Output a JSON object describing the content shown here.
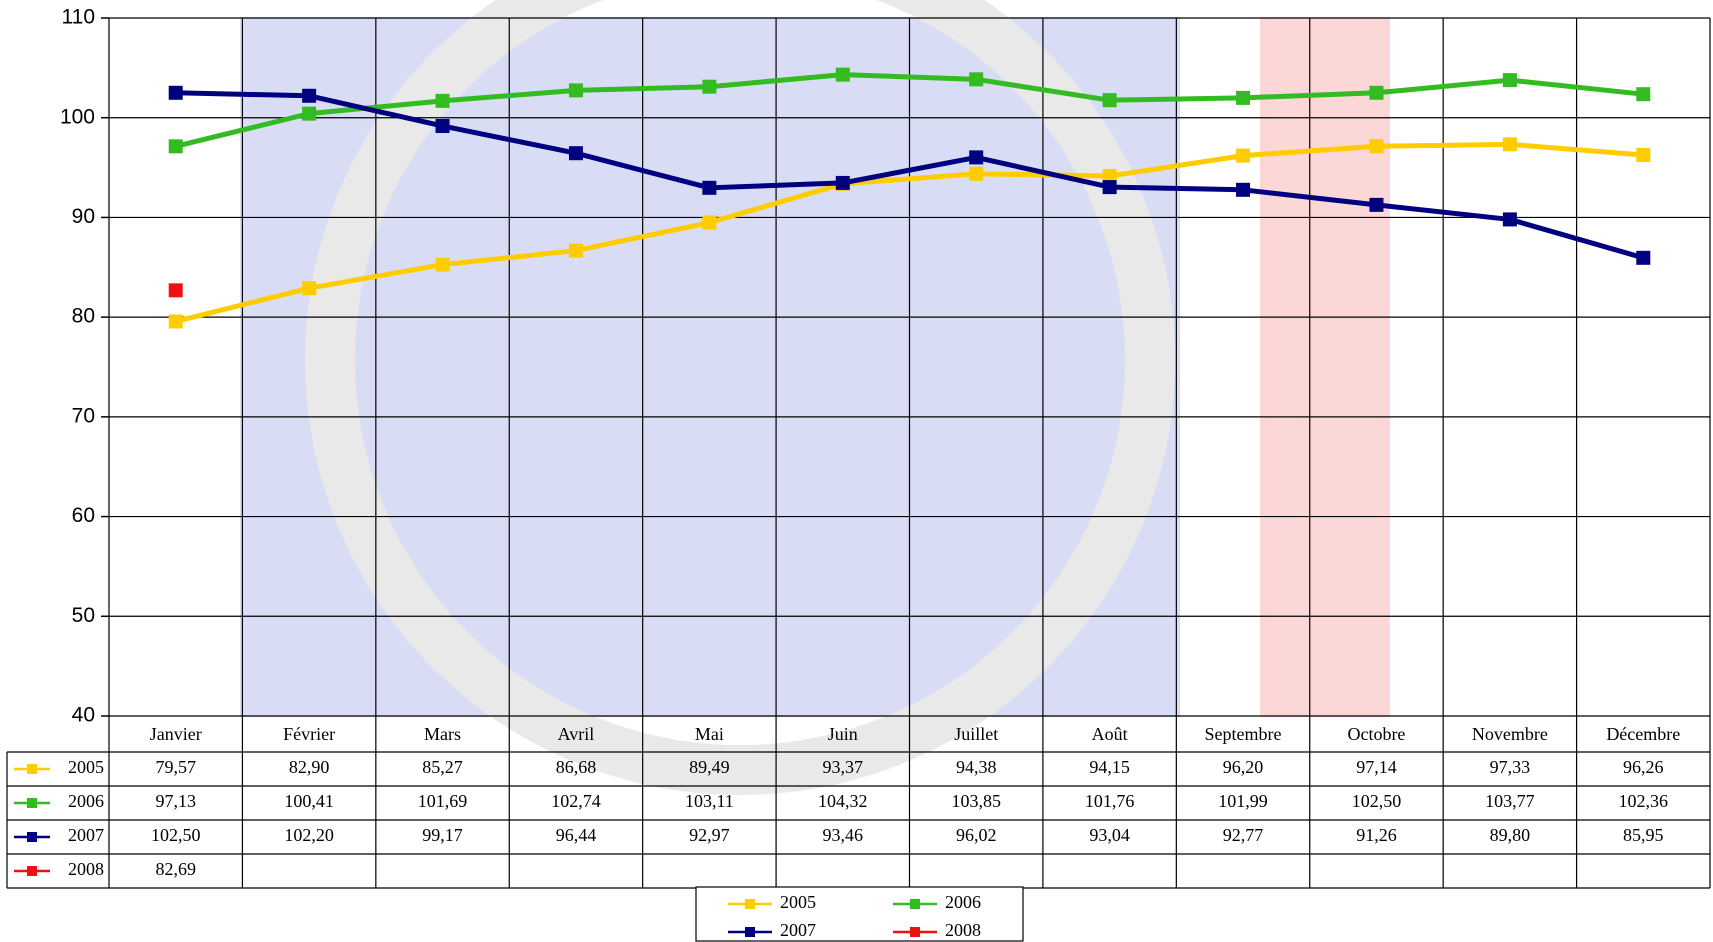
{
  "chart_data": {
    "type": "line",
    "categories": [
      "Janvier",
      "Février",
      "Mars",
      "Avril",
      "Mai",
      "Juin",
      "Juillet",
      "Août",
      "Septembre",
      "Octobre",
      "Novembre",
      "Décembre"
    ],
    "series": [
      {
        "name": "2005",
        "color": "#ffcc00",
        "values": [
          79.57,
          82.9,
          85.27,
          86.68,
          89.49,
          93.37,
          94.38,
          94.15,
          96.2,
          97.14,
          97.33,
          96.26
        ],
        "value_labels": [
          "79,57",
          "82,90",
          "85,27",
          "86,68",
          "89,49",
          "93,37",
          "94,38",
          "94,15",
          "96,20",
          "97,14",
          "97,33",
          "96,26"
        ]
      },
      {
        "name": "2006",
        "color": "#33bb22",
        "values": [
          97.13,
          100.41,
          101.69,
          102.74,
          103.11,
          104.32,
          103.85,
          101.76,
          101.99,
          102.5,
          103.77,
          102.36
        ],
        "value_labels": [
          "97,13",
          "100,41",
          "101,69",
          "102,74",
          "103,11",
          "104,32",
          "103,85",
          "101,76",
          "101,99",
          "102,50",
          "103,77",
          "102,36"
        ]
      },
      {
        "name": "2007",
        "color": "#000080",
        "values": [
          102.5,
          102.2,
          99.17,
          96.44,
          92.97,
          93.46,
          96.02,
          93.04,
          92.77,
          91.26,
          89.8,
          85.95
        ],
        "value_labels": [
          "102,50",
          "102,20",
          "99,17",
          "96,44",
          "92,97",
          "93,46",
          "96,02",
          "93,04",
          "92,77",
          "91,26",
          "89,80",
          "85,95"
        ]
      },
      {
        "name": "2008",
        "color": "#ee1111",
        "values": [
          82.69,
          null,
          null,
          null,
          null,
          null,
          null,
          null,
          null,
          null,
          null,
          null
        ],
        "value_labels": [
          "82,69",
          null,
          null,
          null,
          null,
          null,
          null,
          null,
          null,
          null,
          null,
          null
        ]
      }
    ],
    "ylim": [
      40,
      110
    ],
    "yticks": [
      40,
      50,
      60,
      70,
      80,
      90,
      100,
      110
    ],
    "grid": true
  }
}
